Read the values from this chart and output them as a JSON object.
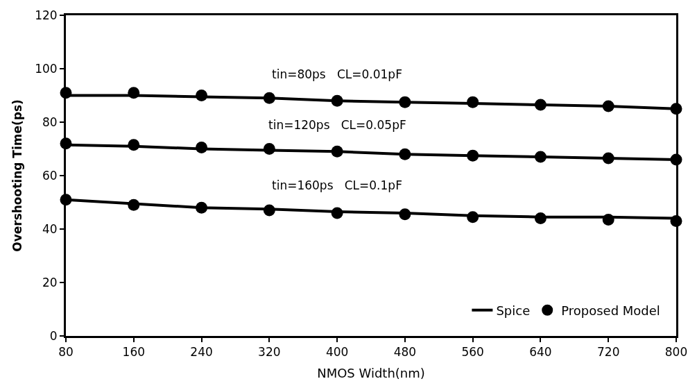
{
  "chart_data": {
    "type": "line",
    "xlabel": "NMOS Width(nm)",
    "ylabel": "Overshooting Time(ps)",
    "x": [
      80,
      160,
      240,
      320,
      400,
      480,
      560,
      640,
      720,
      800
    ],
    "xlim": [
      80,
      800
    ],
    "xticks": [
      80,
      160,
      240,
      320,
      400,
      480,
      560,
      640,
      720,
      800
    ],
    "ylim": [
      0,
      120
    ],
    "yticks": [
      0,
      20,
      40,
      60,
      80,
      100,
      120
    ],
    "legend": "bottom right",
    "series": [
      {
        "name": "Spice",
        "marker": "none",
        "color": "#000000",
        "values": [
          90,
          90,
          89.5,
          89,
          88,
          87.5,
          87,
          86.5,
          86,
          85
        ]
      },
      {
        "marker": "none",
        "color": "#000000",
        "values": [
          71.5,
          71,
          70,
          69.5,
          69,
          68,
          67.5,
          67,
          66.5,
          66
        ]
      },
      {
        "marker": "none",
        "color": "#000000",
        "values": [
          51,
          49.5,
          48,
          47.5,
          46.5,
          46,
          45,
          44.5,
          44.5,
          44
        ]
      },
      {
        "name": "Proposed Model",
        "type": "scatter",
        "marker": "circle",
        "color": "#000000",
        "values": [
          91,
          91,
          90,
          89,
          88,
          87.5,
          87.5,
          86.5,
          86,
          85
        ]
      },
      {
        "type": "scatter",
        "marker": "circle",
        "color": "#000000",
        "values": [
          72,
          71.5,
          70.5,
          70,
          69,
          68,
          67.5,
          67,
          66.5,
          66
        ]
      },
      {
        "type": "scatter",
        "marker": "circle",
        "color": "#000000",
        "values": [
          51,
          49,
          48,
          47,
          46,
          45.5,
          44.5,
          44,
          43.5,
          43
        ]
      }
    ],
    "annotations": [
      "tin=80ps   CL=0.01pF",
      "tin=120ps   CL=0.05pF",
      "tin=160ps   CL=0.1pF"
    ]
  }
}
